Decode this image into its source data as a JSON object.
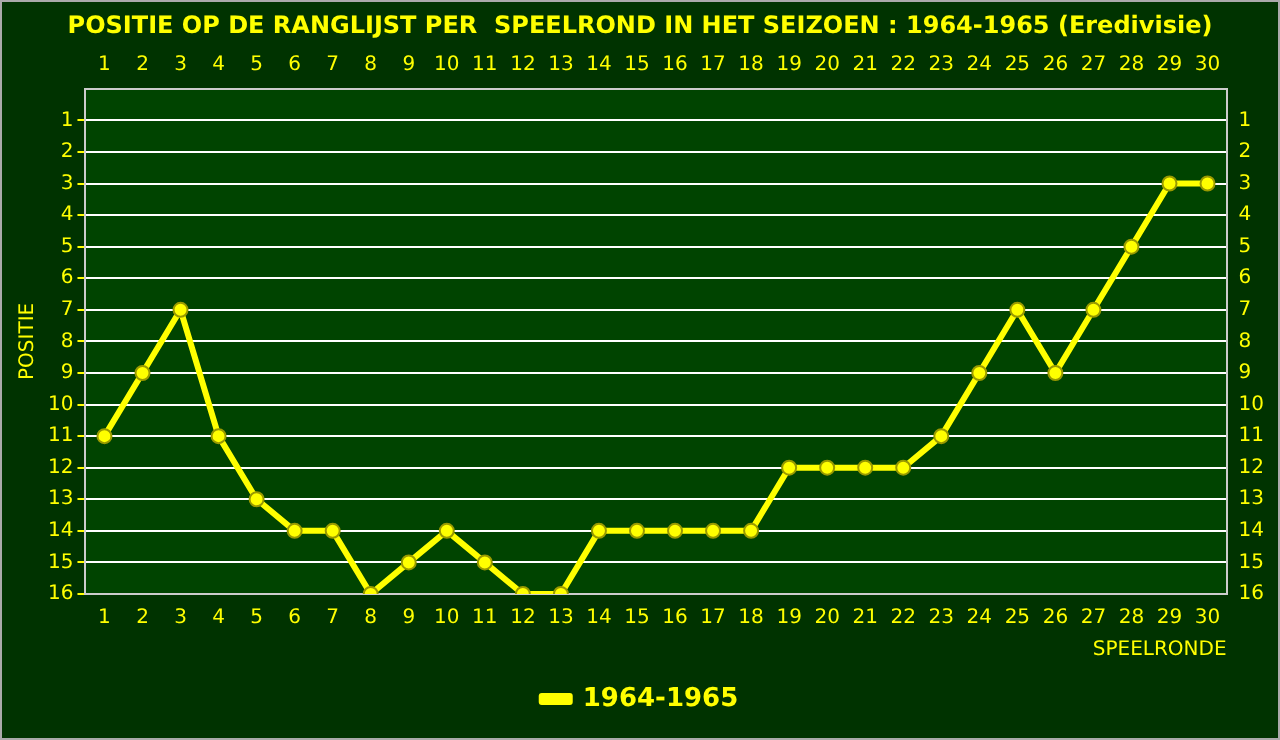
{
  "chart_data": {
    "type": "line",
    "title": "POSITIE OP DE RANGLIJST PER  SPEELROND IN HET SEIZOEN : 1964-1965 (Eredivisie)",
    "xlabel": "SPEELRONDE",
    "ylabel": "POSITIE",
    "x": [
      1,
      2,
      3,
      4,
      5,
      6,
      7,
      8,
      9,
      10,
      11,
      12,
      13,
      14,
      15,
      16,
      17,
      18,
      19,
      20,
      21,
      22,
      23,
      24,
      25,
      26,
      27,
      28,
      29,
      30
    ],
    "series": [
      {
        "name": "1964-1965",
        "color": "#ffff00",
        "values": [
          11,
          9,
          7,
          11,
          13,
          14,
          14,
          16,
          15,
          14,
          15,
          16,
          16,
          14,
          14,
          14,
          14,
          14,
          12,
          12,
          12,
          12,
          11,
          9,
          7,
          9,
          7,
          5,
          3,
          3
        ]
      }
    ],
    "xlim": [
      0.5,
      30.5
    ],
    "xticks": [
      1,
      2,
      3,
      4,
      5,
      6,
      7,
      8,
      9,
      10,
      11,
      12,
      13,
      14,
      15,
      16,
      17,
      18,
      19,
      20,
      21,
      22,
      23,
      24,
      25,
      26,
      27,
      28,
      29,
      30
    ],
    "x2lim": [
      0.5,
      30.5
    ],
    "x2ticks": [
      1,
      2,
      3,
      4,
      5,
      6,
      7,
      8,
      9,
      10,
      11,
      12,
      13,
      14,
      15,
      16,
      17,
      18,
      19,
      20,
      21,
      22,
      23,
      24,
      25,
      26,
      27,
      28,
      29,
      30
    ],
    "ylim": [
      16,
      0
    ],
    "yticks": [
      1,
      2,
      3,
      4,
      5,
      6,
      7,
      8,
      9,
      10,
      11,
      12,
      13,
      14,
      15,
      16
    ],
    "y2lim": [
      16,
      0
    ],
    "y2ticks": [
      1,
      2,
      3,
      4,
      5,
      6,
      7,
      8,
      9,
      10,
      11,
      12,
      13,
      14,
      15,
      16
    ],
    "grid": "y",
    "legend": "bottom",
    "marker": "circle",
    "line_style": "solid"
  }
}
